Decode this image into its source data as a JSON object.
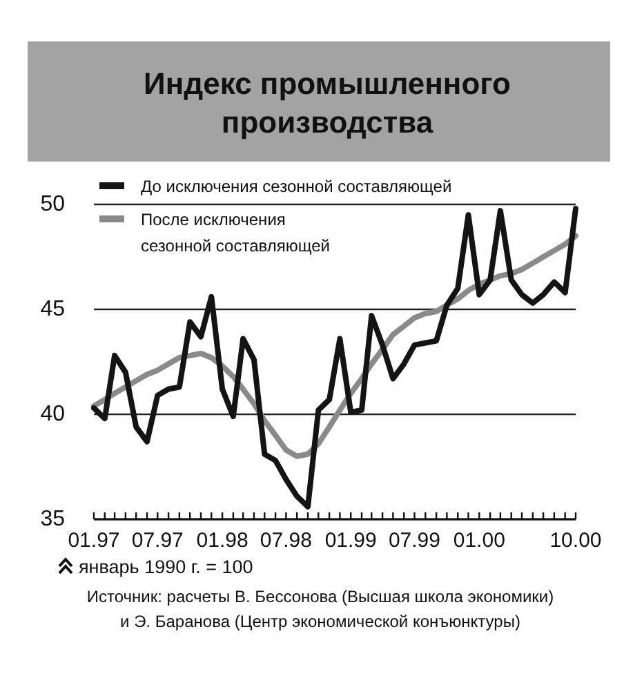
{
  "chart_data": {
    "type": "line",
    "title": "Индекс промышленного\nпроизводства",
    "x": [
      "1997-01",
      "1997-02",
      "1997-03",
      "1997-04",
      "1997-05",
      "1997-06",
      "1997-07",
      "1997-08",
      "1997-09",
      "1997-10",
      "1997-11",
      "1997-12",
      "1998-01",
      "1998-02",
      "1998-03",
      "1998-04",
      "1998-05",
      "1998-06",
      "1998-07",
      "1998-08",
      "1998-09",
      "1998-10",
      "1998-11",
      "1998-12",
      "1999-01",
      "1999-02",
      "1999-03",
      "1999-04",
      "1999-05",
      "1999-06",
      "1999-07",
      "1999-08",
      "1999-09",
      "1999-10",
      "1999-11",
      "1999-12",
      "2000-01",
      "2000-02",
      "2000-03",
      "2000-04",
      "2000-05",
      "2000-06",
      "2000-07",
      "2000-08",
      "2000-09",
      "2000-10"
    ],
    "xlim": [
      "1997-01",
      "2000-10"
    ],
    "xticks": [
      {
        "value": "1997-01",
        "label": "01.97"
      },
      {
        "value": "1997-02",
        "label": null
      },
      {
        "value": "1997-03",
        "label": null
      },
      {
        "value": "1997-04",
        "label": null
      },
      {
        "value": "1997-05",
        "label": null
      },
      {
        "value": "1997-06",
        "label": null
      },
      {
        "value": "1997-07",
        "label": "07.97"
      },
      {
        "value": "1997-08",
        "label": null
      },
      {
        "value": "1997-09",
        "label": null
      },
      {
        "value": "1997-10",
        "label": null
      },
      {
        "value": "1997-11",
        "label": null
      },
      {
        "value": "1997-12",
        "label": null
      },
      {
        "value": "1998-01",
        "label": "01.98"
      },
      {
        "value": "1998-02",
        "label": null
      },
      {
        "value": "1998-03",
        "label": null
      },
      {
        "value": "1998-04",
        "label": null
      },
      {
        "value": "1998-05",
        "label": null
      },
      {
        "value": "1998-06",
        "label": null
      },
      {
        "value": "1998-07",
        "label": "07.98"
      },
      {
        "value": "1998-08",
        "label": null
      },
      {
        "value": "1998-09",
        "label": null
      },
      {
        "value": "1998-10",
        "label": null
      },
      {
        "value": "1998-11",
        "label": null
      },
      {
        "value": "1998-12",
        "label": null
      },
      {
        "value": "1999-01",
        "label": "01.99"
      },
      {
        "value": "1999-02",
        "label": null
      },
      {
        "value": "1999-03",
        "label": null
      },
      {
        "value": "1999-04",
        "label": null
      },
      {
        "value": "1999-05",
        "label": null
      },
      {
        "value": "1999-06",
        "label": null
      },
      {
        "value": "1999-07",
        "label": "07.99"
      },
      {
        "value": "1999-08",
        "label": null
      },
      {
        "value": "1999-09",
        "label": null
      },
      {
        "value": "1999-10",
        "label": null
      },
      {
        "value": "1999-11",
        "label": null
      },
      {
        "value": "1999-12",
        "label": null
      },
      {
        "value": "2000-01",
        "label": "01.00"
      },
      {
        "value": "2000-02",
        "label": null
      },
      {
        "value": "2000-03",
        "label": null
      },
      {
        "value": "2000-04",
        "label": null
      },
      {
        "value": "2000-05",
        "label": null
      },
      {
        "value": "2000-06",
        "label": null
      },
      {
        "value": "2000-07",
        "label": null
      },
      {
        "value": "2000-08",
        "label": null
      },
      {
        "value": "2000-09",
        "label": null
      },
      {
        "value": "2000-10",
        "label": "10.00"
      }
    ],
    "ylim": [
      35,
      50
    ],
    "yticks": [
      35,
      40,
      45,
      50
    ],
    "grid": "y",
    "legend": "top left",
    "series": [
      {
        "name": "До исключения сезонной составляющей",
        "color": "#141414",
        "values": [
          40.3,
          39.8,
          42.8,
          42.0,
          39.4,
          38.7,
          40.9,
          41.2,
          41.3,
          44.4,
          43.7,
          45.6,
          41.2,
          39.9,
          43.6,
          42.6,
          38.1,
          37.8,
          36.9,
          36.1,
          35.6,
          40.2,
          40.7,
          43.6,
          40.1,
          40.2,
          44.7,
          43.3,
          41.7,
          42.4,
          43.3,
          43.4,
          43.5,
          45.2,
          46.0,
          49.5,
          45.7,
          46.4,
          49.7,
          46.4,
          45.7,
          45.3,
          45.7,
          46.3,
          45.8,
          49.8
        ]
      },
      {
        "name": "После исключения\nсезонной составляющей",
        "color": "#8a8a8a",
        "values": [
          40.4,
          40.7,
          41.0,
          41.3,
          41.6,
          41.9,
          42.1,
          42.4,
          42.7,
          42.8,
          42.9,
          42.7,
          42.3,
          41.8,
          41.2,
          40.5,
          39.7,
          39.0,
          38.3,
          38.0,
          38.1,
          38.6,
          39.4,
          40.2,
          41.0,
          41.7,
          42.4,
          43.1,
          43.8,
          44.2,
          44.6,
          44.8,
          44.9,
          45.2,
          45.5,
          45.9,
          46.2,
          46.4,
          46.6,
          46.7,
          46.9,
          47.2,
          47.5,
          47.8,
          48.1,
          48.5
        ]
      }
    ],
    "annotations": [
      "январь 1990 г. = 100",
      "Источник: расчеты В. Бессонова (Высшая школа экономики)\nи Э. Баранова (Центр экономической конъюнктуры)"
    ]
  }
}
